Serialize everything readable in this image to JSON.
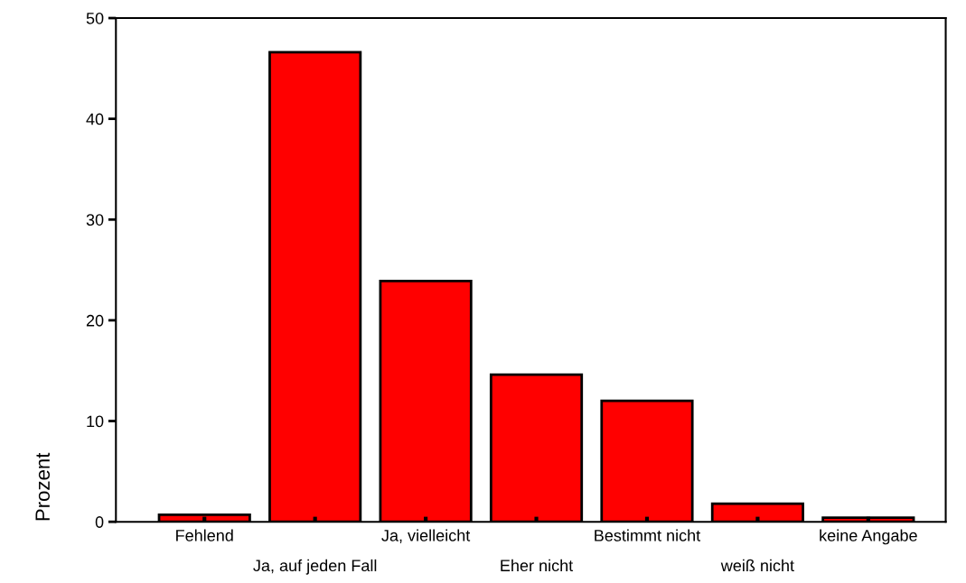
{
  "chart_data": {
    "type": "bar",
    "ylabel": "Prozent",
    "categories": [
      "Fehlend",
      "Ja, auf jeden Fall",
      "Ja, vielleicht",
      "Eher nicht",
      "Bestimmt nicht",
      "weiß nicht",
      "keine Angabe"
    ],
    "values": [
      0.7,
      46.6,
      23.9,
      14.6,
      12.0,
      1.8,
      0.4
    ],
    "color": "#ff0000",
    "ylim": [
      0,
      50
    ],
    "yticks": [
      0,
      10,
      20,
      30,
      40,
      50
    ],
    "grid": false,
    "legend": false
  }
}
